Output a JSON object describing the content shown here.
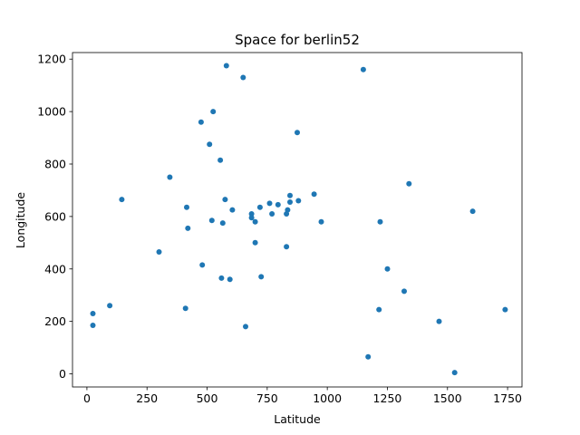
{
  "chart_data": {
    "type": "scatter",
    "title": "Space for berlin52",
    "xlabel": "Latitude",
    "ylabel": "Longitude",
    "xlim": [
      -60,
      1810
    ],
    "ylim": [
      -50,
      1225
    ],
    "xticks": [
      0,
      250,
      500,
      750,
      1000,
      1250,
      1500,
      1750
    ],
    "yticks": [
      0,
      200,
      400,
      600,
      800,
      1000,
      1200
    ],
    "grid": false,
    "marker_color": "#1f77b4",
    "points": [
      [
        565,
        575
      ],
      [
        25,
        185
      ],
      [
        345,
        750
      ],
      [
        945,
        685
      ],
      [
        845,
        655
      ],
      [
        880,
        660
      ],
      [
        25,
        230
      ],
      [
        525,
        1000
      ],
      [
        580,
        1175
      ],
      [
        650,
        1130
      ],
      [
        1605,
        620
      ],
      [
        1220,
        580
      ],
      [
        1465,
        200
      ],
      [
        1530,
        5
      ],
      [
        845,
        680
      ],
      [
        725,
        370
      ],
      [
        145,
        665
      ],
      [
        415,
        635
      ],
      [
        510,
        875
      ],
      [
        560,
        365
      ],
      [
        300,
        465
      ],
      [
        520,
        585
      ],
      [
        480,
        415
      ],
      [
        835,
        625
      ],
      [
        975,
        580
      ],
      [
        1215,
        245
      ],
      [
        1320,
        315
      ],
      [
        1250,
        400
      ],
      [
        660,
        180
      ],
      [
        410,
        250
      ],
      [
        420,
        555
      ],
      [
        575,
        665
      ],
      [
        1150,
        1160
      ],
      [
        700,
        580
      ],
      [
        685,
        595
      ],
      [
        685,
        610
      ],
      [
        770,
        610
      ],
      [
        795,
        645
      ],
      [
        720,
        635
      ],
      [
        760,
        650
      ],
      [
        475,
        960
      ],
      [
        95,
        260
      ],
      [
        875,
        920
      ],
      [
        700,
        500
      ],
      [
        555,
        815
      ],
      [
        830,
        485
      ],
      [
        1170,
        65
      ],
      [
        830,
        610
      ],
      [
        605,
        625
      ],
      [
        595,
        360
      ],
      [
        1340,
        725
      ],
      [
        1740,
        245
      ]
    ]
  }
}
